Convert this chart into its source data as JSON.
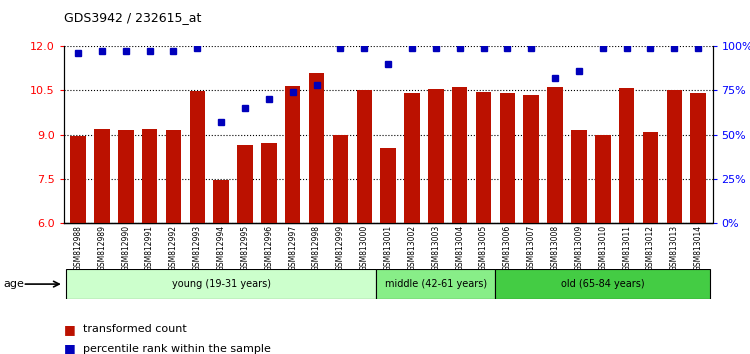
{
  "title": "GDS3942 / 232615_at",
  "samples": [
    "GSM812988",
    "GSM812989",
    "GSM812990",
    "GSM812991",
    "GSM812992",
    "GSM812993",
    "GSM812994",
    "GSM812995",
    "GSM812996",
    "GSM812997",
    "GSM812998",
    "GSM812999",
    "GSM813000",
    "GSM813001",
    "GSM813002",
    "GSM813003",
    "GSM813004",
    "GSM813005",
    "GSM813006",
    "GSM813007",
    "GSM813008",
    "GSM813009",
    "GSM813010",
    "GSM813011",
    "GSM813012",
    "GSM813013",
    "GSM813014"
  ],
  "bar_values": [
    8.95,
    9.2,
    9.15,
    9.2,
    9.15,
    10.47,
    7.45,
    8.65,
    8.7,
    10.63,
    11.1,
    9.0,
    10.5,
    8.55,
    10.4,
    10.55,
    10.6,
    10.45,
    10.4,
    10.35,
    10.6,
    9.15,
    9.0,
    10.57,
    9.1,
    10.5,
    10.4
  ],
  "percentile_values": [
    96,
    97,
    97,
    97,
    97,
    99,
    57,
    65,
    70,
    74,
    78,
    99,
    99,
    90,
    99,
    99,
    99,
    99,
    99,
    99,
    82,
    86,
    99,
    99,
    99,
    99,
    99
  ],
  "bar_color": "#bb1100",
  "dot_color": "#0000bb",
  "ylim_left": [
    6,
    12
  ],
  "ylim_right": [
    0,
    100
  ],
  "yticks_left": [
    6,
    7.5,
    9,
    10.5,
    12
  ],
  "yticks_right": [
    0,
    25,
    50,
    75,
    100
  ],
  "groups": [
    {
      "label": "young (19-31 years)",
      "start": 0,
      "end": 13,
      "color": "#ccffcc"
    },
    {
      "label": "middle (42-61 years)",
      "start": 13,
      "end": 18,
      "color": "#88ee88"
    },
    {
      "label": "old (65-84 years)",
      "start": 18,
      "end": 27,
      "color": "#44cc44"
    }
  ],
  "age_label": "age",
  "legend_bar": "transformed count",
  "legend_dot": "percentile rank within the sample",
  "tick_bg_color": "#cccccc",
  "plot_bg_color": "#ffffff"
}
